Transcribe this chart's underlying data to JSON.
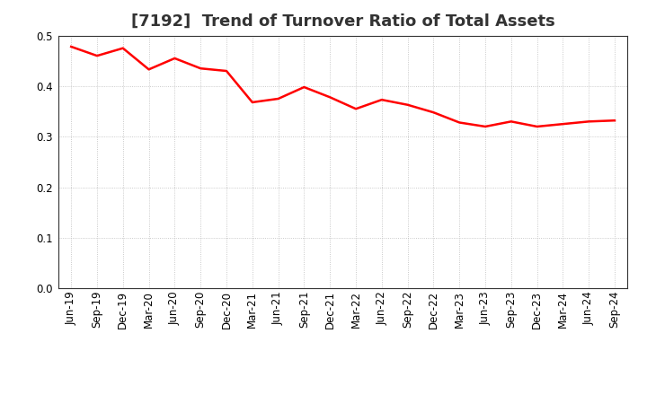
{
  "title": "[7192]  Trend of Turnover Ratio of Total Assets",
  "labels": [
    "Jun-19",
    "Sep-19",
    "Dec-19",
    "Mar-20",
    "Jun-20",
    "Sep-20",
    "Dec-20",
    "Mar-21",
    "Jun-21",
    "Sep-21",
    "Dec-21",
    "Mar-22",
    "Jun-22",
    "Sep-22",
    "Dec-22",
    "Mar-23",
    "Jun-23",
    "Sep-23",
    "Dec-23",
    "Mar-24",
    "Jun-24",
    "Sep-24"
  ],
  "values": [
    0.478,
    0.46,
    0.475,
    0.433,
    0.455,
    0.435,
    0.43,
    0.368,
    0.375,
    0.398,
    0.378,
    0.355,
    0.373,
    0.363,
    0.348,
    0.328,
    0.32,
    0.33,
    0.32,
    0.325,
    0.33,
    0.332
  ],
  "line_color": "#FF0000",
  "line_width": 1.8,
  "ylim": [
    0.0,
    0.5
  ],
  "yticks": [
    0.0,
    0.1,
    0.2,
    0.3,
    0.4,
    0.5
  ],
  "grid_color": "#bbbbbb",
  "bg_color": "#ffffff",
  "title_fontsize": 13,
  "tick_fontsize": 8.5,
  "title_color": "#333333"
}
